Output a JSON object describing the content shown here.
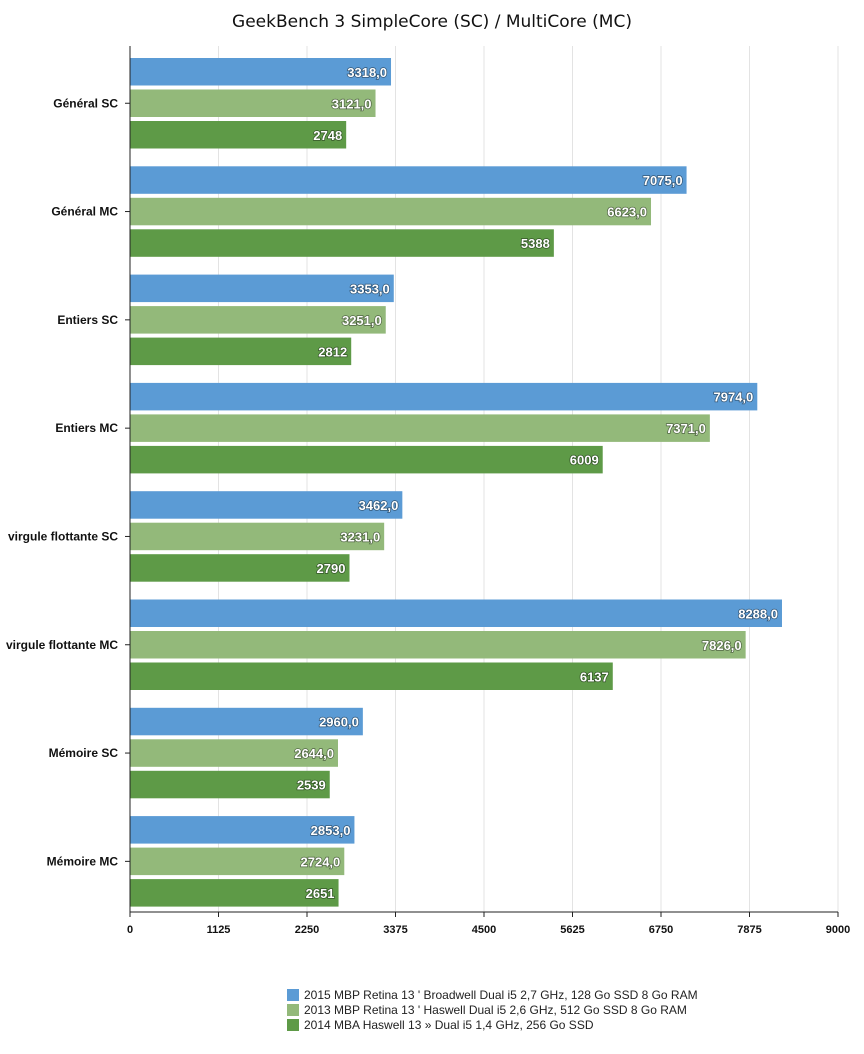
{
  "chart_data": {
    "type": "bar",
    "orientation": "horizontal",
    "title": "GeekBench 3 SimpleCore (SC) / MultiCore (MC)",
    "xlabel": "",
    "ylabel": "",
    "xlim": [
      0,
      9000
    ],
    "x_ticks": [
      0,
      1125,
      2250,
      3375,
      4500,
      5625,
      6750,
      7875,
      9000
    ],
    "x_tick_labels": [
      "0",
      "1125",
      "2250",
      "3375",
      "4500",
      "5625",
      "6750",
      "7875",
      "9000"
    ],
    "grid": true,
    "legend_position": "bottom",
    "categories": [
      "Général SC",
      "Général MC",
      "Entiers SC",
      "Entiers MC",
      "virgule flottante SC",
      "virgule flottante MC",
      "Mémoire SC",
      "Mémoire MC"
    ],
    "series": [
      {
        "name": "2015 MBP Retina 13 ' Broadwell Dual i5 2,7 GHz, 128 Go SSD 8 Go RAM",
        "color": "#5b9bd5",
        "values": [
          3318,
          7075,
          3353,
          7974,
          3462,
          8288,
          2960,
          2853
        ],
        "labels": [
          "3318,0",
          "7075,0",
          "3353,0",
          "7974,0",
          "3462,0",
          "8288,0",
          "2960,0",
          "2853,0"
        ]
      },
      {
        "name": "2013 MBP Retina 13 ' Haswell Dual i5 2,6 GHz, 512 Go SSD 8 Go RAM",
        "color": "#93b97a",
        "values": [
          3121,
          6623,
          3251,
          7371,
          3231,
          7826,
          2644,
          2724
        ],
        "labels": [
          "3121,0",
          "6623,0",
          "3251,0",
          "7371,0",
          "3231,0",
          "7826,0",
          "2644,0",
          "2724,0"
        ]
      },
      {
        "name": "2014 MBA Haswell 13 » Dual i5 1,4 GHz, 256 Go SSD",
        "color": "#5e9a47",
        "values": [
          2748,
          5388,
          2812,
          6009,
          2790,
          6137,
          2539,
          2651
        ],
        "labels": [
          "2748",
          "5388",
          "2812",
          "6009",
          "2790",
          "6137",
          "2539",
          "2651"
        ]
      }
    ]
  }
}
